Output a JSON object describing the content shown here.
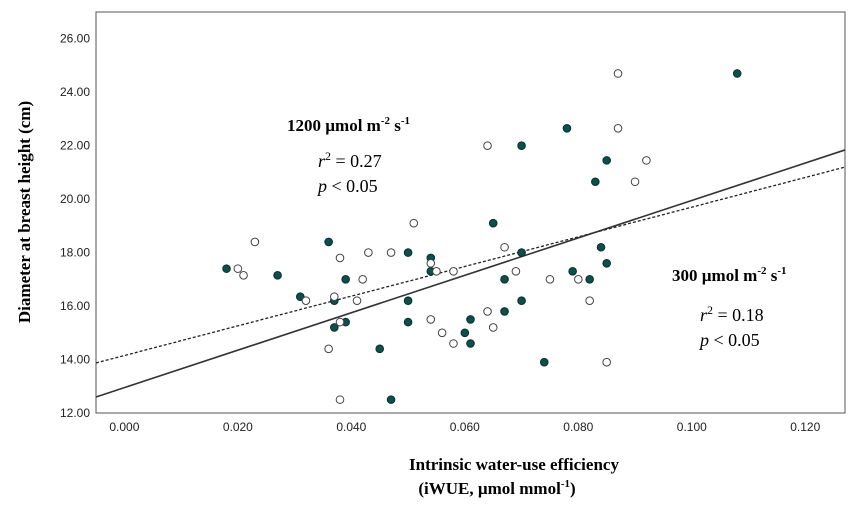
{
  "chart_data": {
    "type": "scatter",
    "xlabel_line1": "Intrinsic water-use efficiency",
    "xlabel_line2_prefix": "(iWUE, µmol mmol",
    "xlabel_line2_sup": "-1",
    "xlabel_line2_suffix": ")",
    "ylabel": "Diameter at breast height (cm)",
    "xlim": [
      -0.005,
      0.127
    ],
    "ylim": [
      12.0,
      27.0
    ],
    "xticks": [
      "0.000",
      "0.020",
      "0.040",
      "0.060",
      "0.080",
      "0.100",
      "0.120"
    ],
    "xtick_values": [
      0,
      0.02,
      0.04,
      0.06,
      0.08,
      0.1,
      0.12
    ],
    "yticks": [
      "12.00",
      "14.00",
      "16.00",
      "18.00",
      "20.00",
      "22.00",
      "24.00",
      "26.00"
    ],
    "ytick_values": [
      12,
      14,
      16,
      18,
      20,
      22,
      24,
      26
    ],
    "grid": false,
    "series": [
      {
        "marker": "filled",
        "color": "#0d4f4a",
        "line_style": "dotted",
        "fit": {
          "intercept": 14.15,
          "slope": 55.5
        },
        "points": [
          [
            0.018,
            17.4
          ],
          [
            0.027,
            17.15
          ],
          [
            0.031,
            16.35
          ],
          [
            0.036,
            18.4
          ],
          [
            0.037,
            16.2
          ],
          [
            0.037,
            15.2
          ],
          [
            0.039,
            15.4
          ],
          [
            0.039,
            17.0
          ],
          [
            0.045,
            14.4
          ],
          [
            0.047,
            12.5
          ],
          [
            0.05,
            18.0
          ],
          [
            0.05,
            16.2
          ],
          [
            0.05,
            15.4
          ],
          [
            0.054,
            17.8
          ],
          [
            0.054,
            17.3
          ],
          [
            0.06,
            15.0
          ],
          [
            0.061,
            15.5
          ],
          [
            0.061,
            14.6
          ],
          [
            0.065,
            19.1
          ],
          [
            0.067,
            17.0
          ],
          [
            0.067,
            15.8
          ],
          [
            0.07,
            22.0
          ],
          [
            0.07,
            18.0
          ],
          [
            0.07,
            16.2
          ],
          [
            0.074,
            13.9
          ],
          [
            0.078,
            22.65
          ],
          [
            0.079,
            17.3
          ],
          [
            0.082,
            17.0
          ],
          [
            0.083,
            20.65
          ],
          [
            0.084,
            18.2
          ],
          [
            0.085,
            21.45
          ],
          [
            0.085,
            17.6
          ],
          [
            0.108,
            24.7
          ]
        ]
      },
      {
        "marker": "open",
        "color": "#444444",
        "line_style": "solid",
        "fit": {
          "intercept": 12.95,
          "slope": 70.0
        },
        "points": [
          [
            0.02,
            17.4
          ],
          [
            0.021,
            17.15
          ],
          [
            0.023,
            18.4
          ],
          [
            0.032,
            16.2
          ],
          [
            0.036,
            14.4
          ],
          [
            0.037,
            16.35
          ],
          [
            0.038,
            17.8
          ],
          [
            0.038,
            15.4
          ],
          [
            0.038,
            12.5
          ],
          [
            0.041,
            16.2
          ],
          [
            0.042,
            17.0
          ],
          [
            0.043,
            18.0
          ],
          [
            0.047,
            18.0
          ],
          [
            0.051,
            19.1
          ],
          [
            0.054,
            17.6
          ],
          [
            0.054,
            15.5
          ],
          [
            0.055,
            17.3
          ],
          [
            0.056,
            15.0
          ],
          [
            0.058,
            14.6
          ],
          [
            0.058,
            17.3
          ],
          [
            0.064,
            22.0
          ],
          [
            0.064,
            15.8
          ],
          [
            0.065,
            15.2
          ],
          [
            0.067,
            18.2
          ],
          [
            0.069,
            17.3
          ],
          [
            0.075,
            17.0
          ],
          [
            0.08,
            17.0
          ],
          [
            0.082,
            16.2
          ],
          [
            0.085,
            13.9
          ],
          [
            0.087,
            24.7
          ],
          [
            0.087,
            22.65
          ],
          [
            0.09,
            20.65
          ],
          [
            0.092,
            21.45
          ]
        ]
      }
    ],
    "annotations": {
      "co2_1200": {
        "title_prefix": "1200 µmol m",
        "title_sup1": "-2",
        "title_mid": " s",
        "title_sup2": "-1",
        "r_label": "r",
        "r_sup": "2",
        "r_value": " = 0.27",
        "p_label": "p",
        "p_value": " < 0.05"
      },
      "co2_300": {
        "title_prefix": "300 µmol m",
        "title_sup1": "-2",
        "title_mid": " s",
        "title_sup2": "-1",
        "r_label": "r",
        "r_sup": "2",
        "r_value": " = 0.18",
        "p_label": "p",
        "p_value": " < 0.05"
      }
    }
  }
}
